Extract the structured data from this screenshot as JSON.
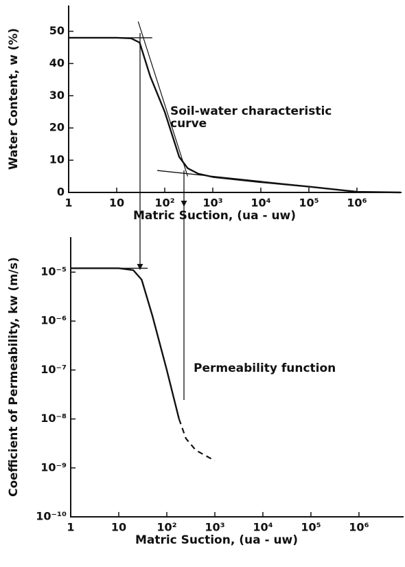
{
  "chart_data": [
    {
      "type": "line",
      "ylabel": "Water Content, w (%)",
      "xlabel": "Matric Suction, (ua - uw)",
      "annotation": [
        "Soil-water characteristic",
        "curve"
      ],
      "xlog": true,
      "ylog": false,
      "xlim": [
        1,
        8500000
      ],
      "ylim": [
        0,
        58
      ],
      "xticks": [
        1,
        10,
        {
          "value": 100,
          "label": "10²"
        },
        {
          "value": 1000,
          "label": "10³"
        },
        {
          "value": 10000,
          "label": "10⁴"
        },
        {
          "value": 100000,
          "label": "10⁵"
        },
        {
          "value": 1000000,
          "label": "10⁶"
        }
      ],
      "yticks": [
        0,
        10,
        20,
        30,
        40,
        50
      ],
      "color": "#111111",
      "series": [
        {
          "x": [
            1,
            5,
            10,
            20,
            30,
            50,
            100,
            200,
            300,
            500,
            1000,
            10000,
            100000,
            1000000,
            8000000
          ],
          "values": [
            48,
            48,
            48,
            47.8,
            46.5,
            36,
            25,
            11,
            7.5,
            5.8,
            4.8,
            3.2,
            1.8,
            0.2,
            0
          ],
          "dashed": false,
          "width": 2.4
        },
        {
          "x": [
            1,
            55
          ],
          "values": [
            48,
            48
          ],
          "dashed": false,
          "width": 1.4
        },
        {
          "x": [
            28,
            300
          ],
          "values": [
            53,
            5
          ],
          "dashed": false,
          "width": 1.2
        },
        {
          "x": [
            70,
            1000000
          ],
          "values": [
            6.8,
            0.3
          ],
          "dashed": false,
          "width": 1.4
        }
      ]
    },
    {
      "type": "line",
      "ylabel": "Coefficient of Permeability, kw (m/s)",
      "xlabel": "Matric Suction, (ua - uw)",
      "annotation": [
        "Permeability function"
      ],
      "xlog": true,
      "ylog": true,
      "xlim": [
        1,
        8500000
      ],
      "ylim": [
        1e-10,
        5.2e-05
      ],
      "xticks": [
        1,
        10,
        {
          "value": 100,
          "label": "10²"
        },
        {
          "value": 1000,
          "label": "10³"
        },
        {
          "value": 10000,
          "label": "10⁴"
        },
        {
          "value": 100000,
          "label": "10⁵"
        },
        {
          "value": 1000000,
          "label": "10⁶"
        }
      ],
      "yticks": [
        {
          "value": 1e-10,
          "label": "10⁻¹⁰"
        },
        {
          "value": 1e-09,
          "label": "10⁻⁹"
        },
        {
          "value": 1e-08,
          "label": "10⁻⁸"
        },
        {
          "value": 1e-07,
          "label": "10⁻⁷"
        },
        {
          "value": 1e-06,
          "label": "10⁻⁶"
        },
        {
          "value": 1e-05,
          "label": "10⁻⁵"
        }
      ],
      "color": "#111111",
      "series": [
        {
          "x": [
            1,
            10,
            20,
            30,
            50,
            100,
            180
          ],
          "values": [
            1.2e-05,
            1.2e-05,
            1.1e-05,
            7e-06,
            1.3e-06,
            1e-07,
            1e-08
          ],
          "dashed": false,
          "width": 2.4
        },
        {
          "x": [
            180,
            250,
            400,
            700,
            1000
          ],
          "values": [
            1e-08,
            4e-09,
            2.3e-09,
            1.7e-09,
            1.4e-09
          ],
          "dashed": true,
          "width": 2.2
        },
        {
          "x": [
            1,
            40
          ],
          "values": [
            1.2e-05,
            1.2e-05
          ],
          "dashed": false,
          "width": 1.4
        }
      ]
    }
  ]
}
